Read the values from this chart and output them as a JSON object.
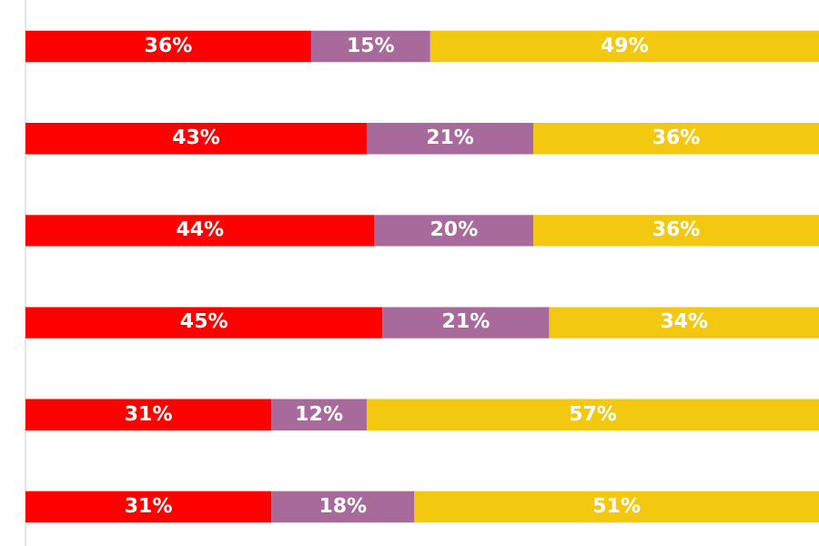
{
  "chart_data": {
    "type": "bar",
    "orientation": "horizontal",
    "stacked": true,
    "grid": false,
    "legend": false,
    "xlim": [
      0,
      100
    ],
    "categories": [
      null,
      null,
      null,
      null,
      null,
      null
    ],
    "series": [
      {
        "color": "#ff0000",
        "values": [
          36,
          43,
          44,
          45,
          31,
          31
        ],
        "value_labels": [
          "36%",
          "43%",
          "44%",
          "45%",
          "31%",
          "31%"
        ]
      },
      {
        "color": "#a8699b",
        "values": [
          15,
          21,
          20,
          21,
          12,
          18
        ],
        "value_labels": [
          "15%",
          "21%",
          "20%",
          "21%",
          "12%",
          "18%"
        ]
      },
      {
        "color": "#f2c811",
        "values": [
          49,
          36,
          36,
          34,
          57,
          51
        ],
        "value_labels": [
          "49%",
          "36%",
          "36%",
          "34%",
          "57%",
          "51%"
        ]
      }
    ]
  }
}
